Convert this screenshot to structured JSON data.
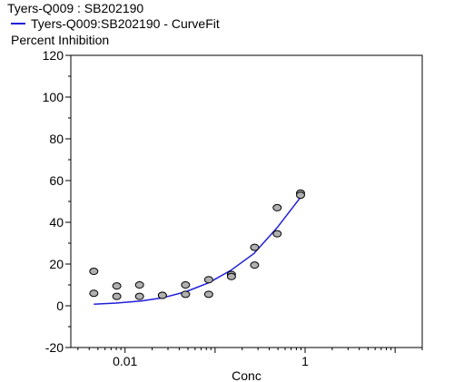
{
  "chart_data": {
    "type": "scatter",
    "title": "Tyers-Q009  : SB202190",
    "xlabel": "Conc",
    "ylabel": "Percent Inhibition",
    "xscale": "log",
    "xlim": [
      0.0025,
      20
    ],
    "ylim": [
      -20,
      120
    ],
    "yticks": [
      -20,
      0,
      20,
      40,
      60,
      80,
      100,
      120
    ],
    "xtick_labels": [
      {
        "value": 0.01,
        "label": "0.01"
      },
      {
        "value": 1,
        "label": "1"
      }
    ],
    "grid": false,
    "legend": {
      "position": "top-left",
      "entries": [
        {
          "name": "Tyers-Q009:SB202190 - CurveFit",
          "color": "#1f1fd9"
        }
      ]
    },
    "series": [
      {
        "type": "scatter",
        "marker_color": "#b0b0b0",
        "points": [
          {
            "x": 0.0045,
            "y": 16.5
          },
          {
            "x": 0.0045,
            "y": 6
          },
          {
            "x": 0.0081,
            "y": 9.5
          },
          {
            "x": 0.0081,
            "y": 4.5
          },
          {
            "x": 0.0145,
            "y": 10
          },
          {
            "x": 0.0145,
            "y": 4.5
          },
          {
            "x": 0.026,
            "y": 5
          },
          {
            "x": 0.026,
            "y": 5
          },
          {
            "x": 0.047,
            "y": 10
          },
          {
            "x": 0.047,
            "y": 5.5
          },
          {
            "x": 0.085,
            "y": 12.5
          },
          {
            "x": 0.085,
            "y": 5.5
          },
          {
            "x": 0.152,
            "y": 15
          },
          {
            "x": 0.152,
            "y": 14
          },
          {
            "x": 0.275,
            "y": 28
          },
          {
            "x": 0.275,
            "y": 19.5
          },
          {
            "x": 0.49,
            "y": 47
          },
          {
            "x": 0.49,
            "y": 34.5
          },
          {
            "x": 0.89,
            "y": 54
          },
          {
            "x": 0.89,
            "y": 53
          }
        ]
      },
      {
        "name": "Tyers-Q009:SB202190 - CurveFit",
        "type": "line",
        "color": "#1f1fd9",
        "points": [
          {
            "x": 0.0045,
            "y": 0.8
          },
          {
            "x": 0.008,
            "y": 1.3
          },
          {
            "x": 0.015,
            "y": 2.3
          },
          {
            "x": 0.026,
            "y": 3.8
          },
          {
            "x": 0.047,
            "y": 6.7
          },
          {
            "x": 0.085,
            "y": 11
          },
          {
            "x": 0.15,
            "y": 17
          },
          {
            "x": 0.27,
            "y": 25
          },
          {
            "x": 0.49,
            "y": 37.5
          },
          {
            "x": 0.89,
            "y": 52
          }
        ]
      }
    ]
  }
}
